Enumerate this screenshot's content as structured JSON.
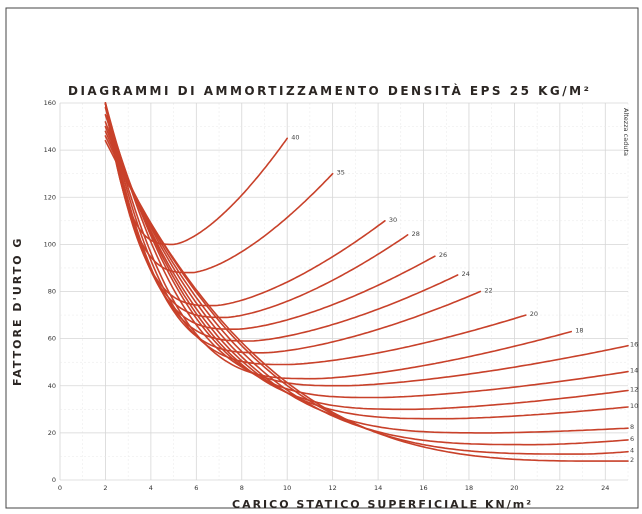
{
  "chart_data": {
    "type": "line",
    "title": "DIAGRAMMI DI AMMORTIZZAMENTO DENSITÀ EPS 25 KG/M²",
    "xlabel": "CARICO STATICO SUPERFICIALE  KN/m²",
    "ylabel": "FATTORE D'URTO  G",
    "side_note": "Altezza caduta",
    "xlim": [
      0,
      25
    ],
    "ylim": [
      0,
      160
    ],
    "x_ticks": [
      "0",
      "2",
      "4",
      "6",
      "8",
      "10",
      "12",
      "14",
      "16",
      "18",
      "20",
      "22",
      "24"
    ],
    "y_ticks": [
      "0",
      "20",
      "40",
      "60",
      "80",
      "100",
      "120",
      "140",
      "160"
    ],
    "grid": true,
    "series": [
      {
        "name": "40",
        "min_x": 5.0,
        "min_y": 100,
        "start_y": 160,
        "end_x": 10.0,
        "end_y": 145
      },
      {
        "name": "35",
        "min_x": 5.8,
        "min_y": 88,
        "start_y": 160,
        "end_x": 12.0,
        "end_y": 130
      },
      {
        "name": "30",
        "min_x": 6.8,
        "min_y": 74,
        "start_y": 160,
        "end_x": 14.3,
        "end_y": 110
      },
      {
        "name": "28",
        "min_x": 7.3,
        "min_y": 69,
        "start_y": 160,
        "end_x": 15.3,
        "end_y": 104
      },
      {
        "name": "26",
        "min_x": 7.8,
        "min_y": 64,
        "start_y": 160,
        "end_x": 16.5,
        "end_y": 95
      },
      {
        "name": "24",
        "min_x": 8.4,
        "min_y": 59,
        "start_y": 160,
        "end_x": 17.5,
        "end_y": 87
      },
      {
        "name": "22",
        "min_x": 9.0,
        "min_y": 54,
        "start_y": 160,
        "end_x": 18.5,
        "end_y": 80
      },
      {
        "name": "20",
        "min_x": 10.0,
        "min_y": 49,
        "start_y": 160,
        "end_x": 20.5,
        "end_y": 70
      },
      {
        "name": "18",
        "min_x": 11.2,
        "min_y": 43,
        "start_y": 160,
        "end_x": 22.5,
        "end_y": 63
      },
      {
        "name": "16",
        "min_x": 12.5,
        "min_y": 40,
        "start_y": 160,
        "end_x": 25.0,
        "end_y": 57
      },
      {
        "name": "14",
        "min_x": 14.0,
        "min_y": 35,
        "start_y": 158,
        "end_x": 25.0,
        "end_y": 46
      },
      {
        "name": "12",
        "min_x": 15.5,
        "min_y": 30,
        "start_y": 155,
        "end_x": 25.0,
        "end_y": 38
      },
      {
        "name": "10",
        "min_x": 17.0,
        "min_y": 26,
        "start_y": 152,
        "end_x": 25.0,
        "end_y": 31
      },
      {
        "name": "8",
        "min_x": 19.0,
        "min_y": 20,
        "start_y": 150,
        "end_x": 25.0,
        "end_y": 22
      },
      {
        "name": "6",
        "min_x": 21.0,
        "min_y": 15,
        "start_y": 148,
        "end_x": 25.0,
        "end_y": 17
      },
      {
        "name": "4",
        "min_x": 23.0,
        "min_y": 11,
        "start_y": 146,
        "end_x": 25.0,
        "end_y": 12
      },
      {
        "name": "2",
        "min_x": 24.5,
        "min_y": 8,
        "start_y": 144,
        "end_x": 25.0,
        "end_y": 8
      }
    ]
  },
  "colors": {
    "curve": "#c8412a",
    "grid": "#d6d6d6",
    "text": "#2b2623"
  }
}
